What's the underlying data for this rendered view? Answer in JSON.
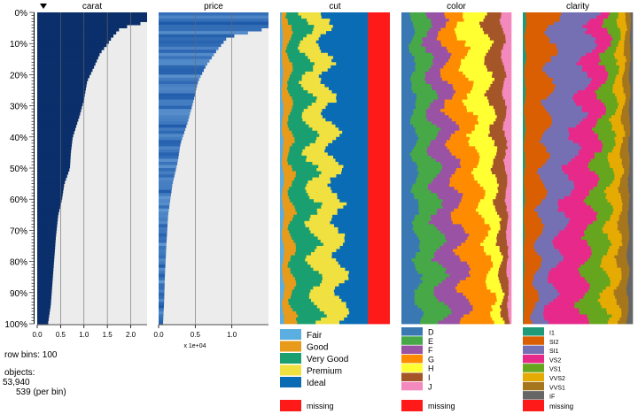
{
  "sort_indicator": "triangle-down-icon",
  "row_bins_label": "row bins:",
  "row_bins_value": "100",
  "objects_label": "objects:",
  "objects_total": "53,940",
  "objects_per_bin": "539 (per bin)",
  "colors": {
    "numeric_dark": "#0b2f6b",
    "numeric_bg": "#ececec",
    "missing": "#ff1a1a"
  },
  "chart_data": {
    "type": "table",
    "rows": 100,
    "row_ticks": [
      "0%",
      "10%",
      "20%",
      "30%",
      "40%",
      "50%",
      "60%",
      "70%",
      "80%",
      "90%",
      "100%"
    ],
    "columns": [
      {
        "name": "carat",
        "kind": "numeric",
        "sorted": true,
        "direction": "descending",
        "xlim": [
          0,
          2.35
        ],
        "ticks": [
          0,
          0.5,
          1.0,
          1.5,
          2.0
        ],
        "tick_labels": [
          "0.0",
          "0.5",
          "1.0",
          "1.5",
          "2.0"
        ],
        "profile": [
          [
            0,
            2.35
          ],
          [
            3,
            2.35
          ],
          [
            5,
            1.78
          ],
          [
            8,
            1.6
          ],
          [
            10,
            1.51
          ],
          [
            13,
            1.35
          ],
          [
            18,
            1.2
          ],
          [
            22,
            1.07
          ],
          [
            28,
            1.0
          ],
          [
            33,
            0.91
          ],
          [
            40,
            0.76
          ],
          [
            45,
            0.72
          ],
          [
            50,
            0.7
          ],
          [
            55,
            0.58
          ],
          [
            60,
            0.53
          ],
          [
            65,
            0.45
          ],
          [
            72,
            0.4
          ],
          [
            80,
            0.36
          ],
          [
            88,
            0.32
          ],
          [
            94,
            0.29
          ],
          [
            100,
            0.23
          ]
        ]
      },
      {
        "name": "price",
        "kind": "numeric",
        "sorted": false,
        "xlim": [
          0,
          15000
        ],
        "ticks": [
          0,
          5000,
          10000
        ],
        "tick_labels": [
          "0.0",
          "0.5",
          "1.0"
        ],
        "scale_label": "x 1e+04",
        "profile": [
          [
            0,
            15000
          ],
          [
            5,
            15000
          ],
          [
            8,
            9400
          ],
          [
            12,
            8000
          ],
          [
            17,
            6500
          ],
          [
            22,
            5400
          ],
          [
            28,
            4800
          ],
          [
            35,
            4000
          ],
          [
            42,
            3000
          ],
          [
            48,
            2600
          ],
          [
            55,
            1900
          ],
          [
            65,
            1300
          ],
          [
            75,
            1050
          ],
          [
            85,
            850
          ],
          [
            93,
            750
          ],
          [
            100,
            600
          ]
        ]
      },
      {
        "name": "cut",
        "kind": "categorical",
        "categories": [
          "Fair",
          "Good",
          "Very Good",
          "Premium",
          "Ideal"
        ],
        "colors": [
          "#5aaee0",
          "#e89a1a",
          "#1aa070",
          "#f0e040",
          "#0a6cb4"
        ],
        "avg_props": [
          0.03,
          0.09,
          0.22,
          0.26,
          0.4
        ],
        "missing": 0.2
      },
      {
        "name": "color",
        "kind": "categorical",
        "categories": [
          "D",
          "E",
          "F",
          "G",
          "H",
          "I",
          "J"
        ],
        "colors": [
          "#3a78b4",
          "#46a846",
          "#9a52a4",
          "#ff8c00",
          "#ffff32",
          "#a55628",
          "#f489be"
        ],
        "avg_props": [
          0.125,
          0.18,
          0.18,
          0.21,
          0.155,
          0.1,
          0.05
        ],
        "missing": 0.0
      },
      {
        "name": "clarity",
        "kind": "categorical",
        "categories": [
          "I1",
          "SI2",
          "SI1",
          "VS2",
          "VS1",
          "VVS2",
          "VVS1",
          "IF"
        ],
        "colors": [
          "#1e9a78",
          "#d95f02",
          "#7570b3",
          "#e7298a",
          "#66a61e",
          "#e6ab02",
          "#a6761d",
          "#666666"
        ],
        "avg_props": [
          0.015,
          0.17,
          0.24,
          0.225,
          0.15,
          0.095,
          0.07,
          0.035
        ],
        "missing": 0.0
      }
    ],
    "missing_label": "missing"
  }
}
